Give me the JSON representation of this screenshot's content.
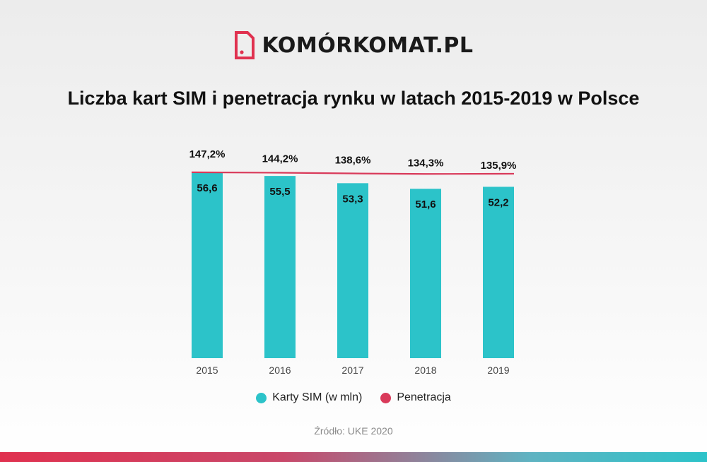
{
  "brand": {
    "name": "KOMÓRKOMAT.PL",
    "color": "#e0314f"
  },
  "chart_data": {
    "type": "bar",
    "title": "Liczba kart SIM i penetracja rynku w latach 2015-2019 w Polsce",
    "categories": [
      "2015",
      "2016",
      "2017",
      "2018",
      "2019"
    ],
    "series": [
      {
        "name": "Karty SIM (w mln)",
        "type": "bar",
        "values": [
          56.6,
          55.5,
          53.3,
          51.6,
          52.2
        ],
        "labels": [
          "56,6",
          "55,5",
          "53,3",
          "51,6",
          "52,2"
        ],
        "color": "#2cc3c9"
      },
      {
        "name": "Penetracja",
        "type": "line",
        "values": [
          147.2,
          144.2,
          138.6,
          134.3,
          135.9
        ],
        "labels": [
          "147,2%",
          "144,2%",
          "138,6%",
          "134,3%",
          "135,9%"
        ],
        "color": "#d93a5a"
      }
    ],
    "grid": false,
    "legend_position": "bottom"
  },
  "source": "Źródło: UKE 2020",
  "colors": {
    "bar": "#2cc3c9",
    "line": "#d93a5a",
    "strip_start": "#e0314f",
    "strip_end": "#2cc3c9"
  }
}
